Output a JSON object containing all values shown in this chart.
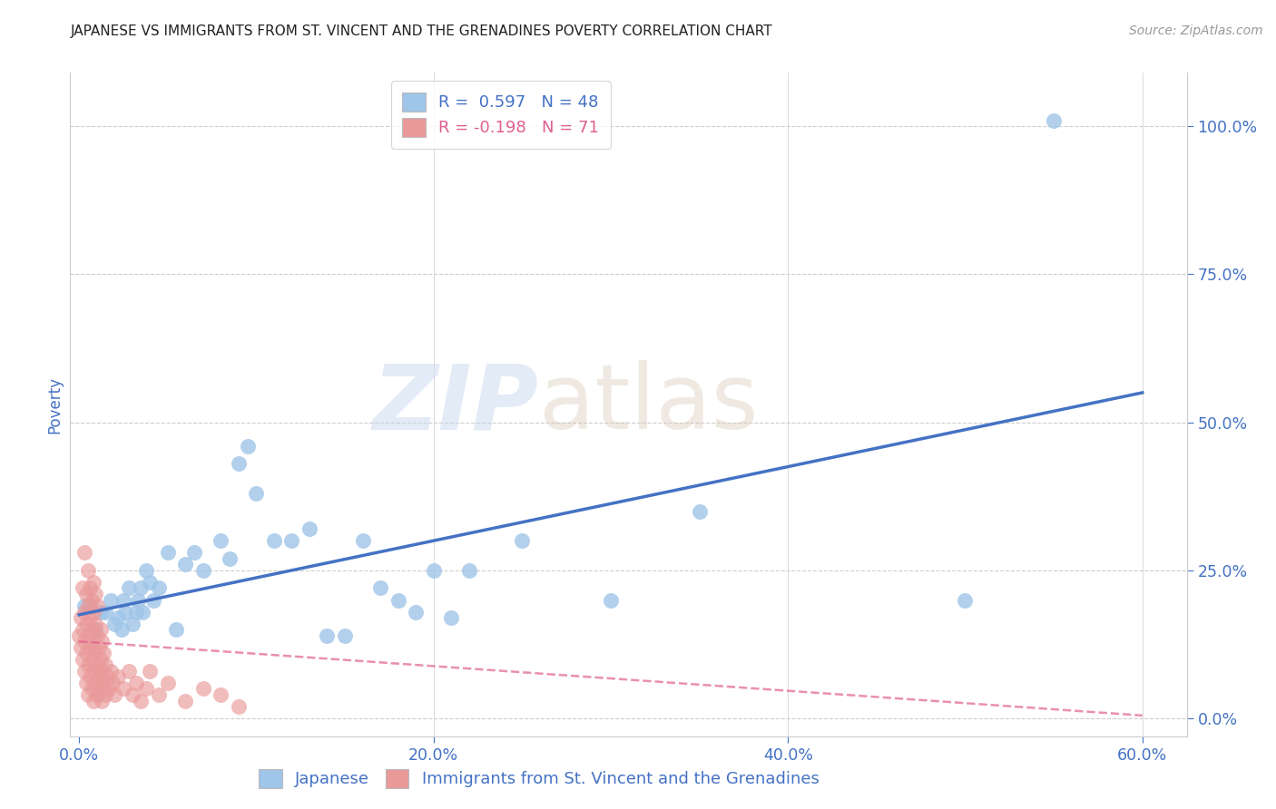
{
  "title": "JAPANESE VS IMMIGRANTS FROM ST. VINCENT AND THE GRENADINES POVERTY CORRELATION CHART",
  "source": "Source: ZipAtlas.com",
  "ylabel_label": "Poverty",
  "xlim": [
    -0.005,
    0.625
  ],
  "ylim": [
    -0.03,
    1.09
  ],
  "xtick_vals": [
    0.0,
    0.2,
    0.4,
    0.6
  ],
  "ytick_vals": [
    0.0,
    0.25,
    0.5,
    0.75,
    1.0
  ],
  "legend_entry1": {
    "color": "#9fc5e8",
    "R": "0.597",
    "N": "48"
  },
  "legend_entry2": {
    "color": "#ea9999",
    "R": "-0.198",
    "N": "71"
  },
  "legend_label1": "Japanese",
  "legend_label2": "Immigrants from St. Vincent and the Grenadines",
  "watermark_zip": "ZIP",
  "watermark_atlas": "atlas",
  "title_color": "#222222",
  "source_color": "#999999",
  "axis_label_color": "#4472c4",
  "tick_color": "#4472c4",
  "blue_scatter_color": "#9fc5e8",
  "blue_line_color": "#4472c4",
  "pink_scatter_color": "#ea9999",
  "pink_line_color": "#e06090",
  "grid_color": "#cccccc",
  "background_color": "#ffffff",
  "blue_points": [
    [
      0.003,
      0.19
    ],
    [
      0.006,
      0.19
    ],
    [
      0.009,
      0.15
    ],
    [
      0.012,
      0.18
    ],
    [
      0.015,
      0.18
    ],
    [
      0.018,
      0.2
    ],
    [
      0.02,
      0.16
    ],
    [
      0.022,
      0.17
    ],
    [
      0.024,
      0.15
    ],
    [
      0.025,
      0.2
    ],
    [
      0.026,
      0.18
    ],
    [
      0.028,
      0.22
    ],
    [
      0.03,
      0.16
    ],
    [
      0.032,
      0.18
    ],
    [
      0.033,
      0.2
    ],
    [
      0.035,
      0.22
    ],
    [
      0.036,
      0.18
    ],
    [
      0.038,
      0.25
    ],
    [
      0.04,
      0.23
    ],
    [
      0.042,
      0.2
    ],
    [
      0.045,
      0.22
    ],
    [
      0.05,
      0.28
    ],
    [
      0.055,
      0.15
    ],
    [
      0.06,
      0.26
    ],
    [
      0.065,
      0.28
    ],
    [
      0.07,
      0.25
    ],
    [
      0.08,
      0.3
    ],
    [
      0.085,
      0.27
    ],
    [
      0.09,
      0.43
    ],
    [
      0.095,
      0.46
    ],
    [
      0.1,
      0.38
    ],
    [
      0.11,
      0.3
    ],
    [
      0.12,
      0.3
    ],
    [
      0.13,
      0.32
    ],
    [
      0.14,
      0.14
    ],
    [
      0.15,
      0.14
    ],
    [
      0.16,
      0.3
    ],
    [
      0.17,
      0.22
    ],
    [
      0.18,
      0.2
    ],
    [
      0.19,
      0.18
    ],
    [
      0.2,
      0.25
    ],
    [
      0.21,
      0.17
    ],
    [
      0.22,
      0.25
    ],
    [
      0.25,
      0.3
    ],
    [
      0.3,
      0.2
    ],
    [
      0.35,
      0.35
    ],
    [
      0.5,
      0.2
    ],
    [
      0.55,
      1.01
    ]
  ],
  "pink_points": [
    [
      0.0,
      0.14
    ],
    [
      0.001,
      0.12
    ],
    [
      0.001,
      0.17
    ],
    [
      0.002,
      0.1
    ],
    [
      0.002,
      0.15
    ],
    [
      0.002,
      0.22
    ],
    [
      0.003,
      0.08
    ],
    [
      0.003,
      0.13
    ],
    [
      0.003,
      0.18
    ],
    [
      0.003,
      0.28
    ],
    [
      0.004,
      0.06
    ],
    [
      0.004,
      0.11
    ],
    [
      0.004,
      0.16
    ],
    [
      0.004,
      0.21
    ],
    [
      0.005,
      0.04
    ],
    [
      0.005,
      0.09
    ],
    [
      0.005,
      0.14
    ],
    [
      0.005,
      0.19
    ],
    [
      0.005,
      0.25
    ],
    [
      0.006,
      0.07
    ],
    [
      0.006,
      0.12
    ],
    [
      0.006,
      0.17
    ],
    [
      0.006,
      0.22
    ],
    [
      0.007,
      0.05
    ],
    [
      0.007,
      0.1
    ],
    [
      0.007,
      0.15
    ],
    [
      0.007,
      0.2
    ],
    [
      0.008,
      0.03
    ],
    [
      0.008,
      0.08
    ],
    [
      0.008,
      0.13
    ],
    [
      0.008,
      0.18
    ],
    [
      0.008,
      0.23
    ],
    [
      0.009,
      0.06
    ],
    [
      0.009,
      0.11
    ],
    [
      0.009,
      0.16
    ],
    [
      0.009,
      0.21
    ],
    [
      0.01,
      0.04
    ],
    [
      0.01,
      0.09
    ],
    [
      0.01,
      0.14
    ],
    [
      0.01,
      0.19
    ],
    [
      0.011,
      0.07
    ],
    [
      0.011,
      0.12
    ],
    [
      0.012,
      0.05
    ],
    [
      0.012,
      0.1
    ],
    [
      0.012,
      0.15
    ],
    [
      0.013,
      0.03
    ],
    [
      0.013,
      0.08
    ],
    [
      0.013,
      0.13
    ],
    [
      0.014,
      0.06
    ],
    [
      0.014,
      0.11
    ],
    [
      0.015,
      0.04
    ],
    [
      0.015,
      0.09
    ],
    [
      0.016,
      0.07
    ],
    [
      0.017,
      0.05
    ],
    [
      0.018,
      0.08
    ],
    [
      0.019,
      0.06
    ],
    [
      0.02,
      0.04
    ],
    [
      0.022,
      0.07
    ],
    [
      0.025,
      0.05
    ],
    [
      0.028,
      0.08
    ],
    [
      0.03,
      0.04
    ],
    [
      0.032,
      0.06
    ],
    [
      0.035,
      0.03
    ],
    [
      0.038,
      0.05
    ],
    [
      0.04,
      0.08
    ],
    [
      0.045,
      0.04
    ],
    [
      0.05,
      0.06
    ],
    [
      0.06,
      0.03
    ],
    [
      0.07,
      0.05
    ],
    [
      0.08,
      0.04
    ],
    [
      0.09,
      0.02
    ]
  ],
  "blue_line": [
    [
      0.0,
      0.175
    ],
    [
      0.6,
      0.55
    ]
  ],
  "pink_line": [
    [
      0.0,
      0.13
    ],
    [
      0.6,
      0.005
    ]
  ]
}
